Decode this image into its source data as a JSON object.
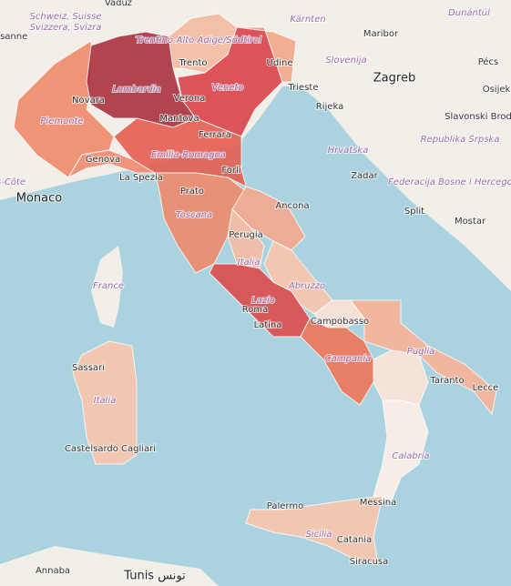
{
  "map": {
    "labels": [
      "Vaduz",
      "Schweiz, Suisse",
      "Svizzera, Svizra",
      "usanne",
      "Kärnten",
      "Dunántúl",
      "Maribor",
      "Slovenija",
      "Zagreb",
      "Pécs",
      "Trentino-Alto Adige/Südtirol",
      "Trento",
      "Udine",
      "Lombardia",
      "Verona",
      "Veneto",
      "Trieste",
      "Rijeka",
      "Osijek",
      "Slavonski Brod",
      "Novara",
      "Piemonte",
      "Mantova",
      "Ferrara",
      "Hrvatska",
      "Republika Srpska",
      "Genova",
      "Emilia-Romagna",
      "Forlì",
      "La Spezia",
      "Monaco",
      "s-Côte",
      "Zadar",
      "Federacija Bosne i Hercegovine",
      "Prato",
      "Ancona",
      "Toscana",
      "Split",
      "Mostar",
      "Perugia",
      "Italia",
      "France",
      "Abruzzo",
      "Lazio",
      "Roma",
      "Latina",
      "Campobasso",
      "Puglia",
      "Campania",
      "Sassari",
      "Italia",
      "Taranto",
      "Lecce",
      "Castelsardo Cagliari",
      "Calabria",
      "Palermo",
      "Messina",
      "Sicilia",
      "Catania",
      "Siracusa",
      "Annaba",
      "Tunis تونس"
    ]
  }
}
